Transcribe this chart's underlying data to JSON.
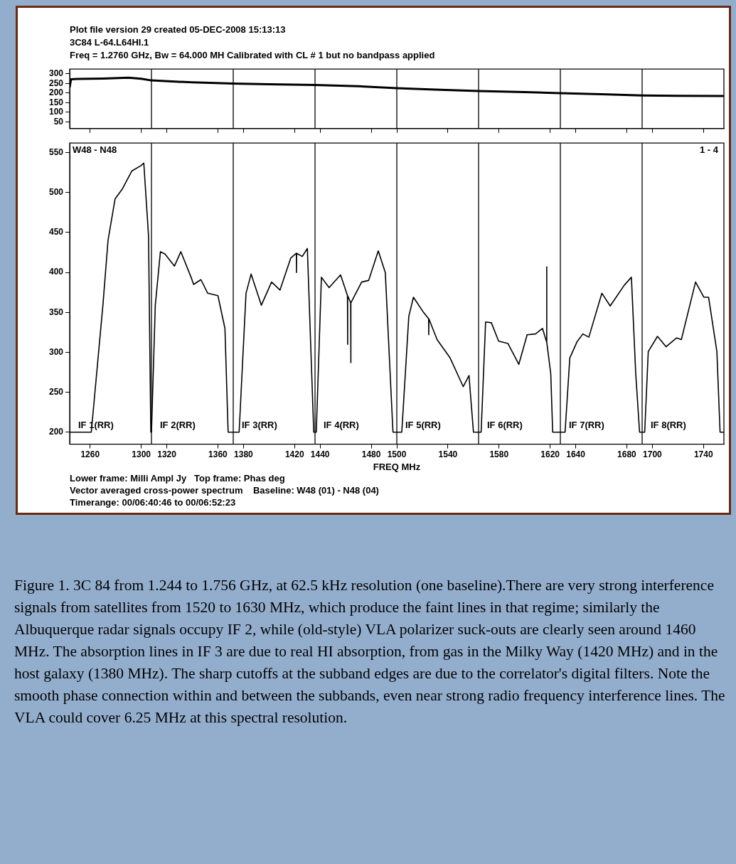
{
  "chart_data": [
    {
      "type": "line",
      "title": "Plot file version 29  created 05-DEC-2008 15:13:13",
      "subtitle": "3C84  L-64.L64HI.1\nFreq = 1.2760 GHz, Bw = 64.000 MH   Calibrated with CL # 1 but no bandpass applied",
      "xlim": [
        1244,
        1756
      ],
      "xticks": [
        1260,
        1300,
        1320,
        1360,
        1380,
        1420,
        1440,
        1480,
        1500,
        1540,
        1580,
        1620,
        1640,
        1680,
        1700,
        1740
      ],
      "ylim": [
        15,
        325
      ],
      "yticks": [
        50,
        100,
        150,
        200,
        250,
        300
      ],
      "tick_labels": "y",
      "series": [
        {
          "color": "#000000",
          "x": [
            1244,
            1245,
            1250,
            1270,
            1290,
            1300,
            1308,
            1340,
            1372,
            1400,
            1436,
            1470,
            1500,
            1530,
            1564,
            1600,
            1628,
            1660,
            1692,
            1720,
            1756
          ],
          "values": [
            230,
            272,
            274,
            276,
            280,
            275,
            266,
            256,
            250,
            246,
            242,
            236,
            226,
            218,
            211,
            205,
            200,
            194,
            188,
            186,
            185
          ]
        }
      ],
      "ref_lines": [
        {
          "axis": "x",
          "value": 1308
        },
        {
          "axis": "x",
          "value": 1372
        },
        {
          "axis": "x",
          "value": 1436
        },
        {
          "axis": "x",
          "value": 1500
        },
        {
          "axis": "x",
          "value": 1564
        },
        {
          "axis": "x",
          "value": 1628
        },
        {
          "axis": "x",
          "value": 1692
        }
      ]
    },
    {
      "type": "line",
      "xlabel": "FREQ MHz",
      "xlim": [
        1244,
        1756
      ],
      "xticks": [
        1260,
        1300,
        1320,
        1360,
        1380,
        1420,
        1440,
        1480,
        1500,
        1540,
        1580,
        1620,
        1640,
        1680,
        1700,
        1740
      ],
      "ylim": [
        185,
        562
      ],
      "yticks": [
        200,
        250,
        300,
        350,
        400,
        450,
        500,
        550
      ],
      "series": [
        {
          "color": "#000000",
          "x": [
            1244,
            1260.9,
            1270,
            1274,
            1279.5,
            1285,
            1292.6,
            1300,
            1302,
            1305.7,
            1307.5,
            1308,
            1311,
            1315,
            1318.6,
            1326,
            1331,
            1339,
            1341,
            1346.7,
            1352,
            1360,
            1365.5,
            1368,
            1376.6,
            1382,
            1386,
            1394,
            1402,
            1408.6,
            1417,
            1421.4,
            1421.5,
            1421.6,
            1426,
            1430,
            1435,
            1437,
            1441,
            1447,
            1456,
            1461.4,
            1461.5,
            1461.6,
            1463.9,
            1464,
            1464.1,
            1472.5,
            1478,
            1485.5,
            1491,
            1497,
            1503.9,
            1509.4,
            1513,
            1520.5,
            1524.9,
            1525,
            1525.1,
            1531.5,
            1541.7,
            1552,
            1556.5,
            1560,
            1566,
            1569.5,
            1574,
            1579.7,
            1587,
            1595.5,
            1602,
            1608.5,
            1614,
            1617.2,
            1617.3,
            1617.4,
            1620.5,
            1622,
            1631.7,
            1635.4,
            1641,
            1645.6,
            1650.3,
            1660.5,
            1667,
            1678,
            1683.6,
            1687,
            1690,
            1694,
            1696.8,
            1704,
            1710.7,
            1719,
            1722.7,
            1733.8,
            1740.3,
            1744,
            1750.5,
            1753,
            1756
          ],
          "values": [
            200,
            200,
            359,
            440,
            492,
            504,
            527,
            534,
            537,
            446,
            200,
            200,
            359,
            426,
            423,
            408,
            426,
            394,
            385,
            391,
            374,
            371,
            330,
            200,
            200,
            374,
            398,
            359,
            388,
            378,
            418,
            424,
            400,
            424,
            420,
            430,
            200,
            200,
            394,
            381,
            397,
            371,
            310,
            371,
            362,
            287,
            362,
            388,
            390,
            427,
            400,
            200,
            200,
            345,
            369,
            351,
            342,
            322,
            342,
            316,
            293,
            257,
            271,
            200,
            200,
            338,
            337,
            314,
            311,
            285,
            322,
            323,
            330,
            313,
            407,
            313,
            273,
            200,
            200,
            293,
            313,
            323,
            319,
            374,
            358,
            384,
            394,
            273,
            200,
            200,
            301,
            320,
            307,
            318,
            316,
            388,
            369,
            369,
            301,
            200,
            200
          ]
        }
      ],
      "ref_lines": [
        {
          "axis": "x",
          "value": 1308
        },
        {
          "axis": "x",
          "value": 1372
        },
        {
          "axis": "x",
          "value": 1436
        },
        {
          "axis": "x",
          "value": 1500
        },
        {
          "axis": "x",
          "value": 1564
        },
        {
          "axis": "x",
          "value": 1628
        },
        {
          "axis": "x",
          "value": 1692
        }
      ],
      "annotations": [
        "W48 - N48",
        "1 - 4",
        "IF 1(RR)",
        "IF 2(RR)",
        "IF 3(RR)",
        "IF 4(RR)",
        "IF 5(RR)",
        "IF 6(RR)",
        "IF 7(RR)",
        "IF 8(RR)",
        "Lower frame: Milli Ampl Jy   Top frame: Phas deg",
        "Vector averaged cross-power spectrum    Baseline: W48 (01) - N48 (04)",
        "Timerange: 00/06:40:46 to 00/06:52:23",
        "Figure 1. 3C 84 from 1.244 to 1.756 GHz, at 62.5 kHz resolution (one baseline).There are very strong interference signals from satellites from 1520 to 1630 MHz, which produce the faint lines in that regime; similarly the Albuquerque radar signals occupy IF 2, while (old-style) VLA polarizer suck-outs are clearly seen around 1460 MHz. The absorption lines in IF 3 are due to real HI absorption, from gas in the Milky Way (1420 MHz) and in the host galaxy (1380 MHz). The sharp cutoffs at the subband edges are due to the correlator's digital filters. Note the smooth phase connection within and between the subbands, even near strong radio frequency interference lines. The VLA could cover 6.25 MHz at this spectral resolution."
      ]
    }
  ]
}
